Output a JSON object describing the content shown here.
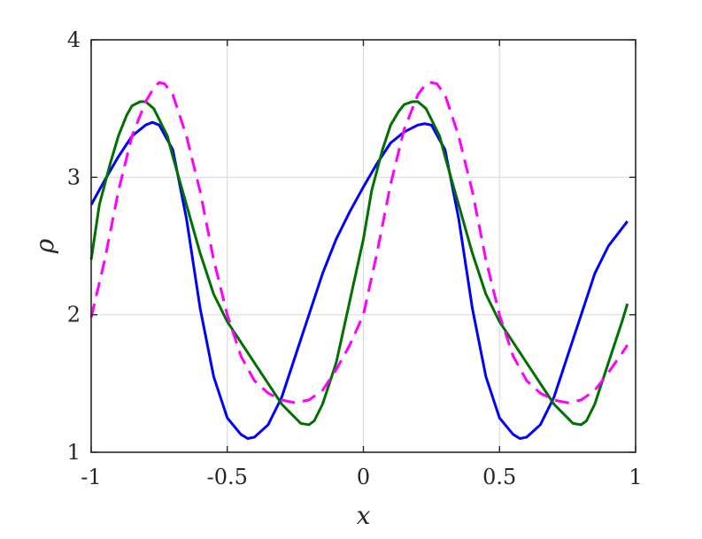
{
  "chart_data": {
    "type": "line",
    "title": "",
    "xlabel": "x",
    "ylabel": "ρ",
    "xlim": [
      -1,
      1
    ],
    "ylim": [
      1,
      4
    ],
    "xticks": [
      -1,
      -0.5,
      0,
      0.5,
      1
    ],
    "xtick_labels": [
      "-1",
      "-0.5",
      "0",
      "0.5",
      "1"
    ],
    "yticks": [
      1,
      2,
      3,
      4
    ],
    "ytick_labels": [
      "1",
      "2",
      "3",
      "4"
    ],
    "grid": true,
    "legend": "none",
    "series": [
      {
        "color": "#0000ff",
        "style": "solid",
        "x": [
          -1.0,
          -0.95,
          -0.9,
          -0.85,
          -0.8,
          -0.775,
          -0.75,
          -0.7,
          -0.65,
          -0.6,
          -0.55,
          -0.5,
          -0.45,
          -0.425,
          -0.4,
          -0.35,
          -0.3,
          -0.25,
          -0.2,
          -0.15,
          -0.1,
          -0.05,
          0.0,
          0.05,
          0.1,
          0.15,
          0.2,
          0.225,
          0.25,
          0.3,
          0.35,
          0.4,
          0.45,
          0.5,
          0.55,
          0.575,
          0.6,
          0.65,
          0.7,
          0.75,
          0.8,
          0.85,
          0.9,
          0.97
        ],
        "y": [
          2.8,
          2.98,
          3.15,
          3.3,
          3.38,
          3.4,
          3.38,
          3.2,
          2.7,
          2.05,
          1.55,
          1.25,
          1.13,
          1.1,
          1.11,
          1.2,
          1.4,
          1.7,
          2.0,
          2.3,
          2.55,
          2.75,
          2.93,
          3.1,
          3.25,
          3.33,
          3.38,
          3.39,
          3.38,
          3.2,
          2.7,
          2.05,
          1.55,
          1.25,
          1.13,
          1.1,
          1.11,
          1.2,
          1.4,
          1.7,
          2.0,
          2.3,
          2.5,
          2.68
        ]
      },
      {
        "color": "#007000",
        "style": "solid",
        "x": [
          -1.0,
          -0.97,
          -0.93,
          -0.9,
          -0.87,
          -0.85,
          -0.82,
          -0.8,
          -0.77,
          -0.75,
          -0.72,
          -0.7,
          -0.65,
          -0.6,
          -0.55,
          -0.5,
          -0.45,
          -0.4,
          -0.35,
          -0.3,
          -0.25,
          -0.23,
          -0.2,
          -0.18,
          -0.15,
          -0.1,
          -0.05,
          0.0,
          0.03,
          0.07,
          0.1,
          0.13,
          0.15,
          0.18,
          0.2,
          0.23,
          0.25,
          0.28,
          0.3,
          0.35,
          0.4,
          0.45,
          0.5,
          0.55,
          0.6,
          0.65,
          0.7,
          0.75,
          0.77,
          0.8,
          0.82,
          0.85,
          0.9,
          0.95,
          0.97
        ],
        "y": [
          2.4,
          2.8,
          3.1,
          3.3,
          3.45,
          3.52,
          3.55,
          3.55,
          3.5,
          3.42,
          3.3,
          3.15,
          2.8,
          2.45,
          2.15,
          1.95,
          1.8,
          1.65,
          1.5,
          1.35,
          1.25,
          1.21,
          1.2,
          1.23,
          1.35,
          1.65,
          2.1,
          2.55,
          2.9,
          3.2,
          3.38,
          3.48,
          3.53,
          3.55,
          3.55,
          3.5,
          3.42,
          3.3,
          3.15,
          2.8,
          2.45,
          2.15,
          1.95,
          1.8,
          1.65,
          1.5,
          1.35,
          1.25,
          1.21,
          1.2,
          1.23,
          1.35,
          1.65,
          1.95,
          2.08
        ]
      },
      {
        "color": "#ff00ff",
        "style": "dashed",
        "x": [
          -1.0,
          -0.95,
          -0.9,
          -0.85,
          -0.8,
          -0.77,
          -0.75,
          -0.73,
          -0.7,
          -0.65,
          -0.6,
          -0.55,
          -0.5,
          -0.45,
          -0.4,
          -0.35,
          -0.3,
          -0.25,
          -0.2,
          -0.15,
          -0.1,
          -0.05,
          0.0,
          0.05,
          0.1,
          0.15,
          0.2,
          0.23,
          0.25,
          0.27,
          0.3,
          0.35,
          0.4,
          0.45,
          0.5,
          0.55,
          0.6,
          0.65,
          0.7,
          0.75,
          0.8,
          0.85,
          0.9,
          0.95,
          0.97
        ],
        "y": [
          1.98,
          2.4,
          2.9,
          3.3,
          3.55,
          3.65,
          3.69,
          3.68,
          3.6,
          3.3,
          2.9,
          2.4,
          2.0,
          1.7,
          1.52,
          1.43,
          1.38,
          1.36,
          1.38,
          1.45,
          1.6,
          1.78,
          2.0,
          2.45,
          2.95,
          3.35,
          3.6,
          3.68,
          3.69,
          3.68,
          3.6,
          3.3,
          2.9,
          2.4,
          2.0,
          1.7,
          1.52,
          1.43,
          1.38,
          1.36,
          1.38,
          1.45,
          1.58,
          1.72,
          1.78
        ]
      }
    ]
  }
}
